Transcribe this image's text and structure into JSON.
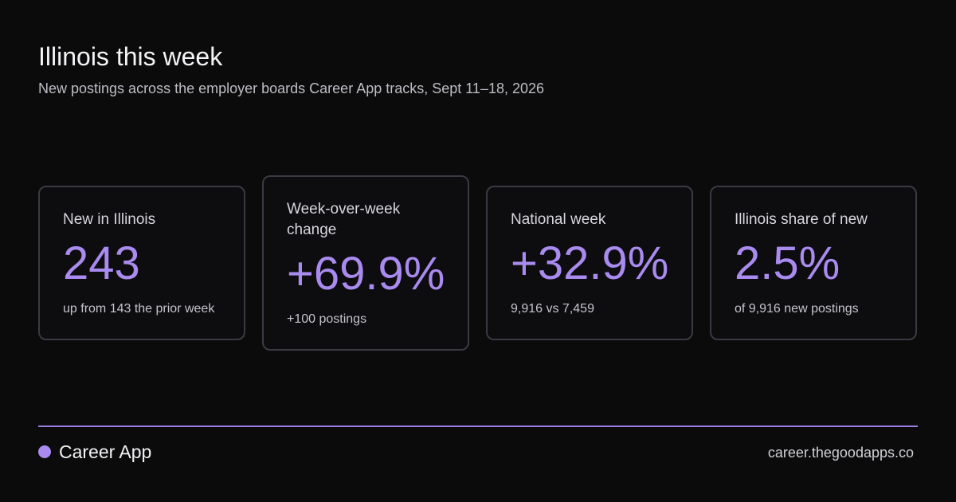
{
  "header": {
    "title": "Illinois this week",
    "subtitle": "New postings across the employer boards Career App tracks, Sept 11–18, 2026"
  },
  "cards": [
    {
      "label": "New in Illinois",
      "value": "243",
      "note": "up from 143 the prior week"
    },
    {
      "label": "Week-over-week change",
      "value": "+69.9%",
      "note": "+100 postings"
    },
    {
      "label": "National week",
      "value": "+32.9%",
      "note": "9,916 vs 7,459"
    },
    {
      "label": "Illinois share of new",
      "value": "2.5%",
      "note": "of 9,916 new postings"
    }
  ],
  "footer": {
    "brand": "Career App",
    "url": "career.thegoodapps.co"
  },
  "colors": {
    "background": "#0b0b0c",
    "accent": "#a98bf0",
    "card_border": "#3a3a42"
  }
}
